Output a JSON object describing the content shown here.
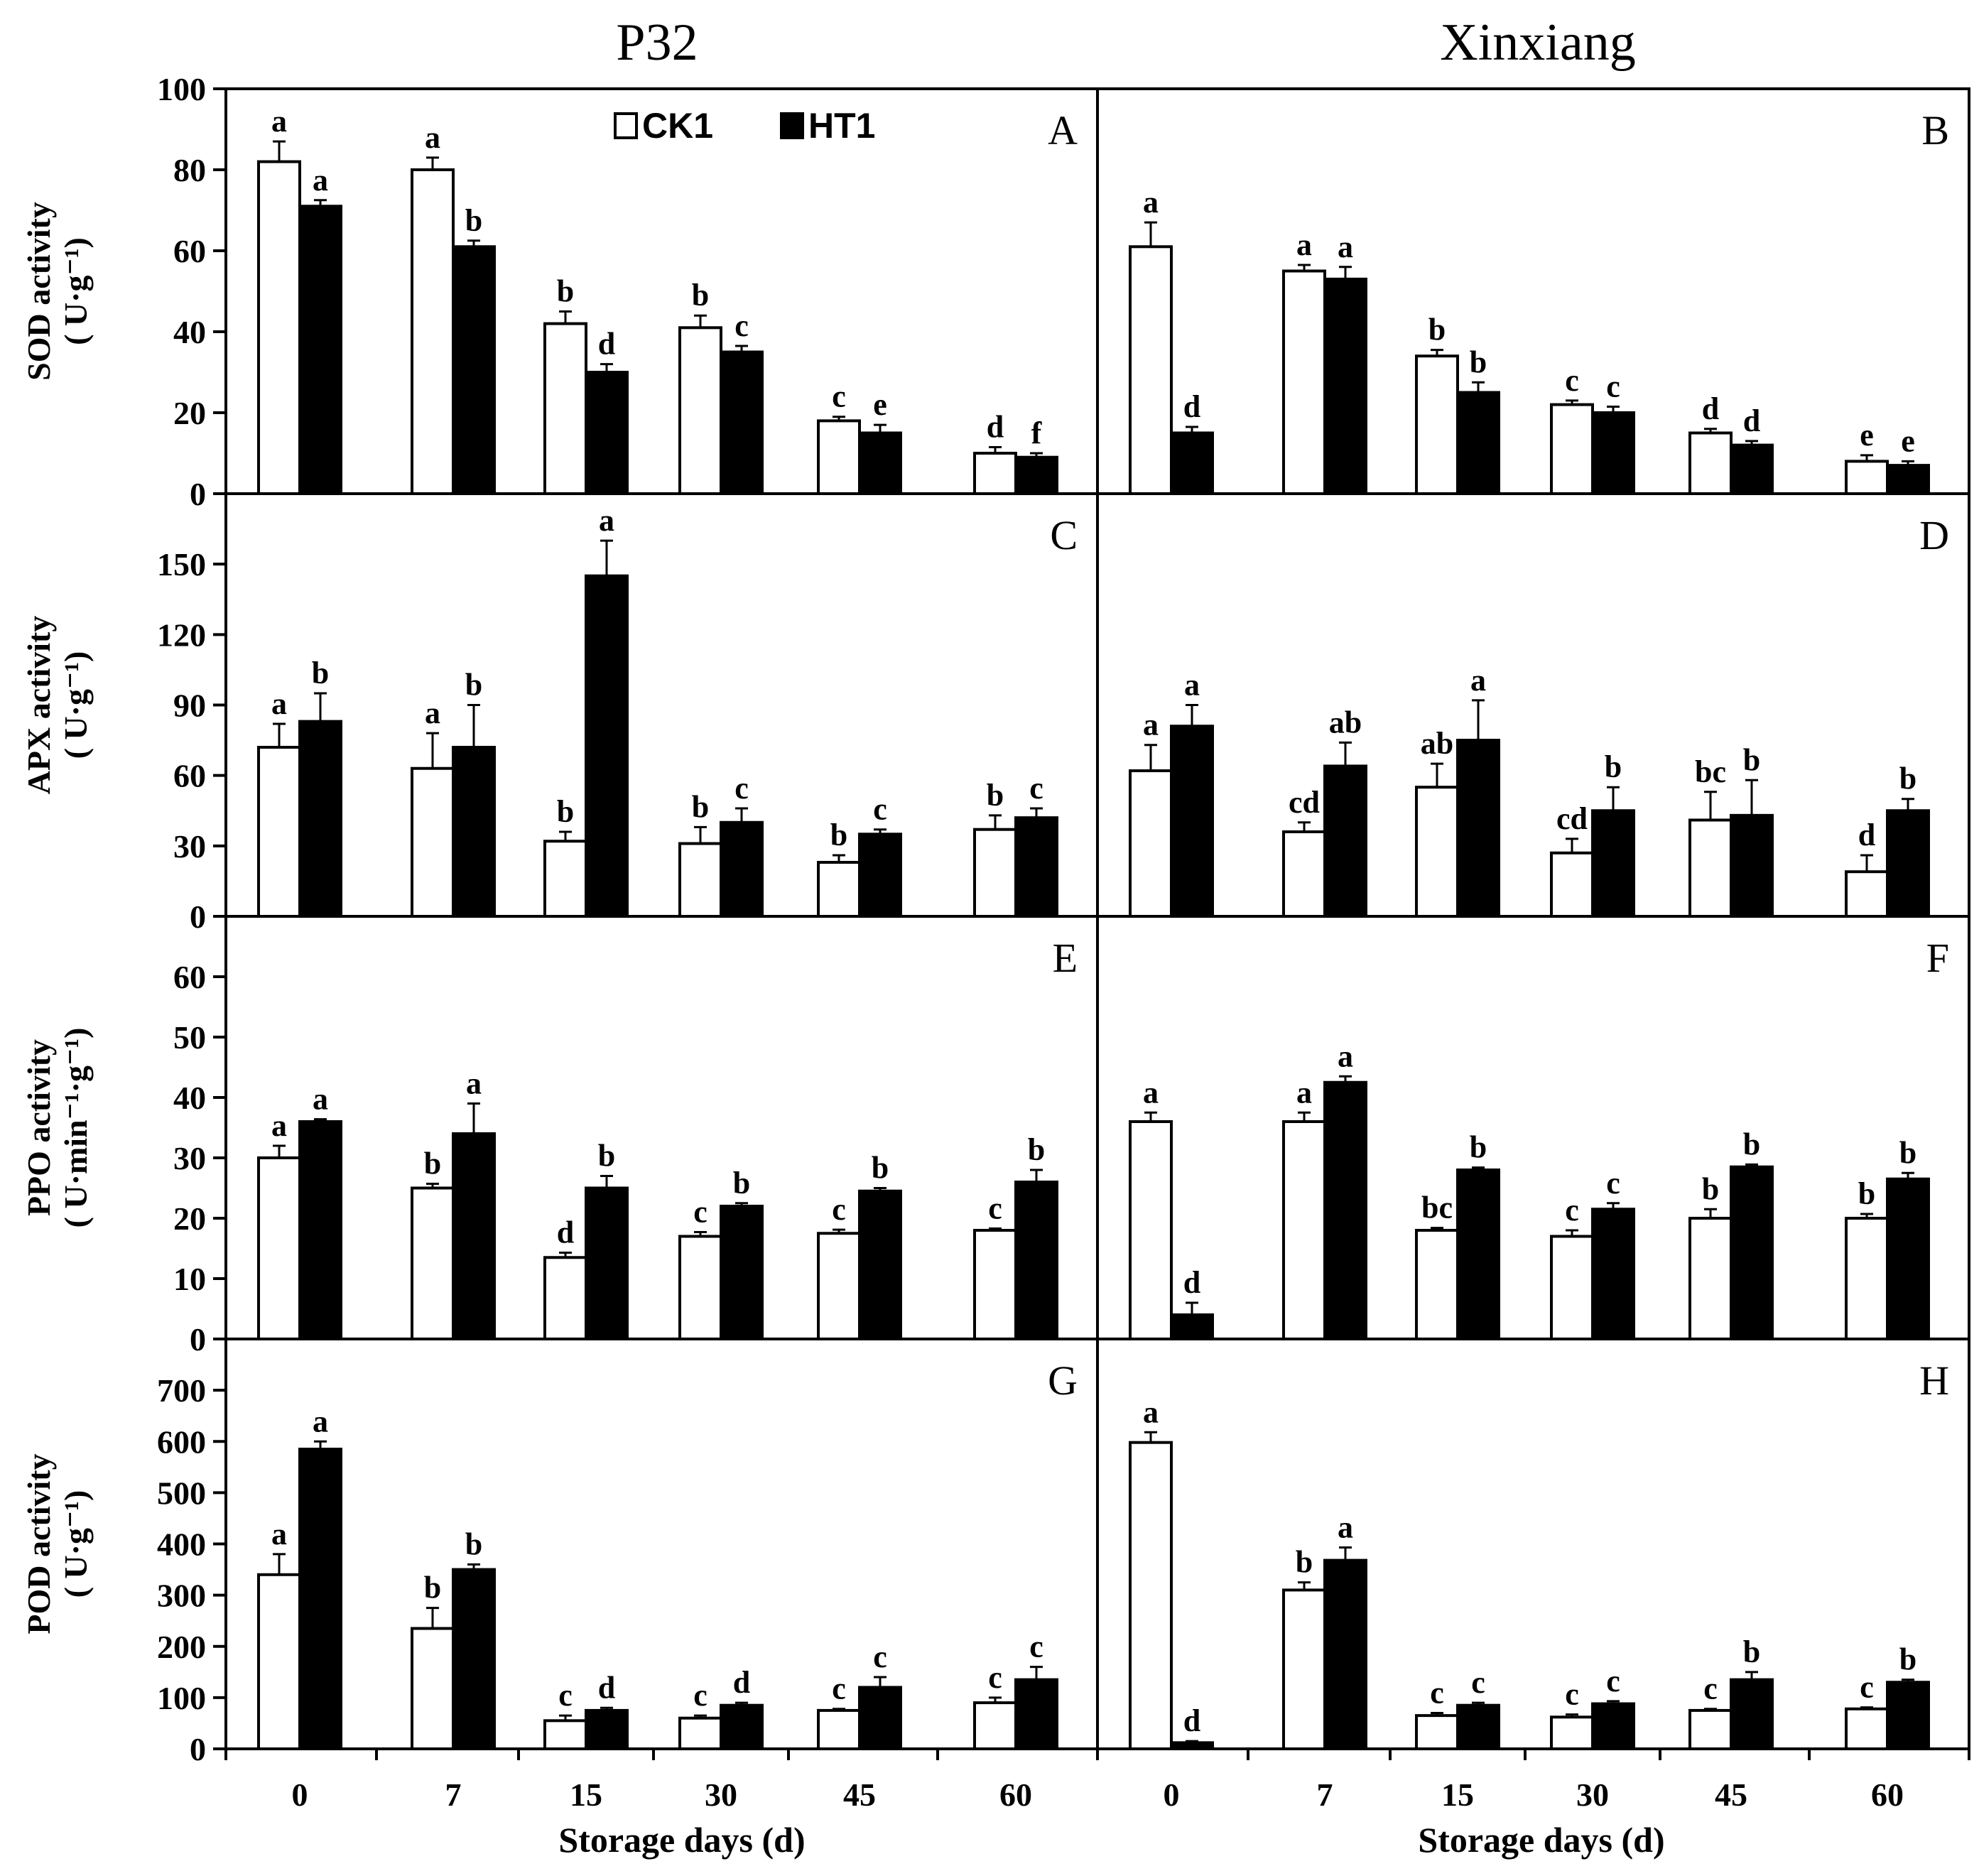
{
  "figure": {
    "column_titles": [
      "P32",
      "Xinxiang"
    ],
    "xlabel": "Storage days (d)",
    "legend": [
      {
        "label": "CK1",
        "fill": "#ffffff"
      },
      {
        "label": "HT1",
        "fill": "#000000"
      }
    ],
    "colors": {
      "ck1": "#ffffff",
      "ht1": "#000000",
      "axis": "#000000"
    }
  },
  "chart_data": [
    {
      "type": "bar",
      "panel": "A",
      "title": "P32",
      "ylabel": [
        "SOD activity",
        "( U·g⁻¹)"
      ],
      "ylim": [
        0,
        100
      ],
      "yticks": [
        0,
        20,
        40,
        60,
        80,
        100
      ],
      "categories": [
        "0",
        "7",
        "15",
        "30",
        "45",
        "60"
      ],
      "series": [
        {
          "name": "CK1",
          "values": [
            82,
            80,
            42,
            41,
            18,
            10
          ],
          "errors": [
            5,
            3,
            3,
            3,
            1,
            1.5
          ],
          "letters": [
            "a",
            "a",
            "b",
            "b",
            "c",
            "d"
          ]
        },
        {
          "name": "HT1",
          "values": [
            71,
            61,
            30,
            35,
            15,
            9
          ],
          "errors": [
            1.5,
            1.5,
            2,
            1.5,
            2,
            1
          ],
          "letters": [
            "a",
            "b",
            "d",
            "c",
            "e",
            "f"
          ]
        }
      ],
      "xlabel": "Storage days (d)"
    },
    {
      "type": "bar",
      "panel": "B",
      "title": "Xinxiang",
      "ylabel": [
        "SOD activity",
        "( U·g⁻¹)"
      ],
      "ylim": [
        0,
        100
      ],
      "yticks": [
        0,
        20,
        40,
        60,
        80,
        100
      ],
      "categories": [
        "0",
        "7",
        "15",
        "30",
        "45",
        "60"
      ],
      "series": [
        {
          "name": "CK1",
          "values": [
            61,
            55,
            34,
            22,
            15,
            8
          ],
          "errors": [
            6,
            1.5,
            1.5,
            1,
            1,
            1.5
          ],
          "letters": [
            "a",
            "a",
            "b",
            "c",
            "d",
            "e"
          ]
        },
        {
          "name": "HT1",
          "values": [
            15,
            53,
            25,
            20,
            12,
            7
          ],
          "errors": [
            1.5,
            3,
            2.5,
            1.5,
            1,
            1
          ],
          "letters": [
            "d",
            "a",
            "b",
            "c",
            "d",
            "e"
          ]
        }
      ],
      "xlabel": "Storage days (d)"
    },
    {
      "type": "bar",
      "panel": "C",
      "title": "P32",
      "ylabel": [
        "APX activity",
        "( U·g⁻¹)"
      ],
      "ylim": [
        0,
        180
      ],
      "yticks": [
        0,
        30,
        60,
        90,
        120,
        150
      ],
      "categories": [
        "0",
        "7",
        "15",
        "30",
        "45",
        "60"
      ],
      "series": [
        {
          "name": "CK1",
          "values": [
            72,
            63,
            32,
            31,
            23,
            37
          ],
          "errors": [
            10,
            15,
            4,
            7,
            3,
            6
          ],
          "letters": [
            "a",
            "a",
            "b",
            "b",
            "b",
            "b"
          ]
        },
        {
          "name": "HT1",
          "values": [
            83,
            72,
            145,
            40,
            35,
            42
          ],
          "errors": [
            12,
            18,
            15,
            6,
            2,
            4
          ],
          "letters": [
            "b",
            "b",
            "a",
            "c",
            "c",
            "c"
          ]
        }
      ],
      "xlabel": "Storage days (d)"
    },
    {
      "type": "bar",
      "panel": "D",
      "title": "Xinxiang",
      "ylabel": [
        "APX activity",
        "( U·g⁻¹)"
      ],
      "ylim": [
        0,
        180
      ],
      "yticks": [
        0,
        30,
        60,
        90,
        120,
        150
      ],
      "categories": [
        "0",
        "7",
        "15",
        "30",
        "45",
        "60"
      ],
      "series": [
        {
          "name": "CK1",
          "values": [
            62,
            36,
            55,
            27,
            41,
            19
          ],
          "errors": [
            11,
            4,
            10,
            6,
            12,
            7
          ],
          "letters": [
            "a",
            "cd",
            "ab",
            "cd",
            "bc",
            "d"
          ]
        },
        {
          "name": "HT1",
          "values": [
            81,
            64,
            75,
            45,
            43,
            45
          ],
          "errors": [
            9,
            10,
            17,
            10,
            15,
            5
          ],
          "letters": [
            "a",
            "ab",
            "a",
            "b",
            "b",
            "b"
          ]
        }
      ],
      "xlabel": "Storage days (d)"
    },
    {
      "type": "bar",
      "panel": "E",
      "title": "P32",
      "ylabel": [
        "PPO activity",
        "( U·min⁻¹·g⁻¹)"
      ],
      "ylim": [
        0,
        70
      ],
      "yticks": [
        0,
        10,
        20,
        30,
        40,
        50,
        60
      ],
      "categories": [
        "0",
        "7",
        "15",
        "30",
        "45",
        "60"
      ],
      "series": [
        {
          "name": "CK1",
          "values": [
            30,
            25,
            13.5,
            17,
            17.5,
            18
          ],
          "errors": [
            2,
            0.7,
            0.8,
            0.7,
            0.6,
            0.3
          ],
          "letters": [
            "a",
            "b",
            "d",
            "c",
            "c",
            "c"
          ]
        },
        {
          "name": "HT1",
          "values": [
            36,
            34,
            25,
            22,
            24.5,
            26
          ],
          "errors": [
            0.4,
            5,
            2,
            0.5,
            0.5,
            2
          ],
          "letters": [
            "a",
            "a",
            "b",
            "b",
            "b",
            "b"
          ]
        }
      ],
      "xlabel": "Storage days (d)"
    },
    {
      "type": "bar",
      "panel": "F",
      "title": "Xinxiang",
      "ylabel": [
        "PPO activity",
        "( U·min⁻¹·g⁻¹)"
      ],
      "ylim": [
        0,
        70
      ],
      "yticks": [
        0,
        10,
        20,
        30,
        40,
        50,
        60
      ],
      "categories": [
        "0",
        "7",
        "15",
        "30",
        "45",
        "60"
      ],
      "series": [
        {
          "name": "CK1",
          "values": [
            36,
            36,
            18,
            17,
            20,
            20
          ],
          "errors": [
            1.5,
            1.5,
            0.4,
            1,
            1.5,
            0.7
          ],
          "letters": [
            "a",
            "a",
            "bc",
            "c",
            "b",
            "b"
          ]
        },
        {
          "name": "HT1",
          "values": [
            4,
            42.5,
            28,
            21.5,
            28.5,
            26.5
          ],
          "errors": [
            2,
            1,
            0.4,
            1,
            0.4,
            1
          ],
          "letters": [
            "d",
            "a",
            "b",
            "c",
            "b",
            "b"
          ]
        }
      ],
      "xlabel": "Storage days (d)"
    },
    {
      "type": "bar",
      "panel": "G",
      "title": "P32",
      "ylabel": [
        "POD activity",
        "( U·g⁻¹)"
      ],
      "ylim": [
        0,
        800
      ],
      "yticks": [
        0,
        100,
        200,
        300,
        400,
        500,
        600,
        700
      ],
      "categories": [
        "0",
        "7",
        "15",
        "30",
        "45",
        "60"
      ],
      "series": [
        {
          "name": "CK1",
          "values": [
            340,
            235,
            55,
            60,
            75,
            90
          ],
          "errors": [
            40,
            40,
            10,
            5,
            3,
            10
          ],
          "letters": [
            "a",
            "b",
            "c",
            "c",
            "c",
            "c"
          ]
        },
        {
          "name": "HT1",
          "values": [
            585,
            350,
            75,
            85,
            120,
            135
          ],
          "errors": [
            15,
            10,
            5,
            5,
            20,
            25
          ],
          "letters": [
            "a",
            "b",
            "d",
            "d",
            "c",
            "c"
          ]
        }
      ],
      "xlabel": "Storage days (d)"
    },
    {
      "type": "bar",
      "panel": "H",
      "title": "Xinxiang",
      "ylabel": [
        "POD activity",
        "( U·g⁻¹)"
      ],
      "ylim": [
        0,
        800
      ],
      "yticks": [
        0,
        100,
        200,
        300,
        400,
        500,
        600,
        700
      ],
      "categories": [
        "0",
        "7",
        "15",
        "30",
        "45",
        "60"
      ],
      "series": [
        {
          "name": "CK1",
          "values": [
            598,
            310,
            65,
            62,
            75,
            78
          ],
          "errors": [
            20,
            15,
            5,
            5,
            3,
            3
          ],
          "letters": [
            "a",
            "b",
            "c",
            "c",
            "c",
            "c"
          ]
        },
        {
          "name": "HT1",
          "values": [
            12,
            368,
            85,
            88,
            135,
            130
          ],
          "errors": [
            3,
            25,
            5,
            5,
            15,
            5
          ],
          "letters": [
            "d",
            "a",
            "c",
            "c",
            "b",
            "b"
          ]
        }
      ],
      "xlabel": "Storage days (d)"
    }
  ]
}
